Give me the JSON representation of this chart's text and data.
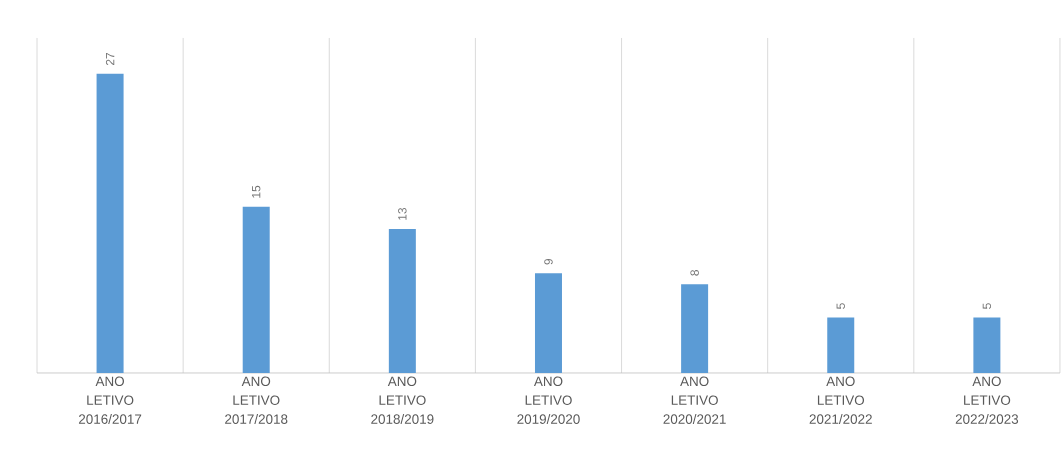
{
  "chart_data": {
    "type": "bar",
    "categories": [
      "ANO LETIVO 2016/2017",
      "ANO LETIVO 2017/2018",
      "ANO LETIVO 2018/2019",
      "ANO LETIVO 2019/2020",
      "ANO LETIVO 2020/2021",
      "ANO LETIVO 2021/2022",
      "ANO LETIVO 2022/2023"
    ],
    "values": [
      27,
      15,
      13,
      9,
      8,
      5,
      5
    ],
    "color": "#5b9bd5",
    "data_labels": true,
    "grid": "x",
    "tick_labels": "x"
  }
}
